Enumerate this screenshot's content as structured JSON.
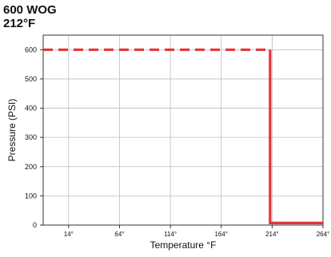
{
  "header": {
    "title": "600 WOG",
    "subtitle": "212°F"
  },
  "colors": {
    "accent": "#e3343a",
    "grid": "#bdbdbd",
    "axis": "#333333"
  },
  "chart_data": {
    "type": "line",
    "title": "600 WOG",
    "subtitle": "212°F",
    "xlabel": "Temperature °F",
    "ylabel": "Pressure (PSI)",
    "xlim": [
      -11,
      264
    ],
    "ylim": [
      0,
      650
    ],
    "x_ticks": [
      14,
      64,
      114,
      164,
      214,
      264
    ],
    "x_tick_labels": [
      "14°",
      "64°",
      "114°",
      "164°",
      "214°",
      "264°"
    ],
    "y_ticks": [
      0,
      100,
      200,
      300,
      400,
      500,
      600
    ],
    "y_tick_labels": [
      "0",
      "100",
      "200",
      "300",
      "400",
      "500",
      "600"
    ],
    "grid": true,
    "series": [
      {
        "style": "dashed",
        "points": [
          [
            -11,
            600
          ],
          [
            212,
            600
          ]
        ]
      },
      {
        "style": "solid",
        "points": [
          [
            212,
            600
          ],
          [
            212,
            7
          ],
          [
            264,
            7
          ]
        ]
      }
    ]
  }
}
